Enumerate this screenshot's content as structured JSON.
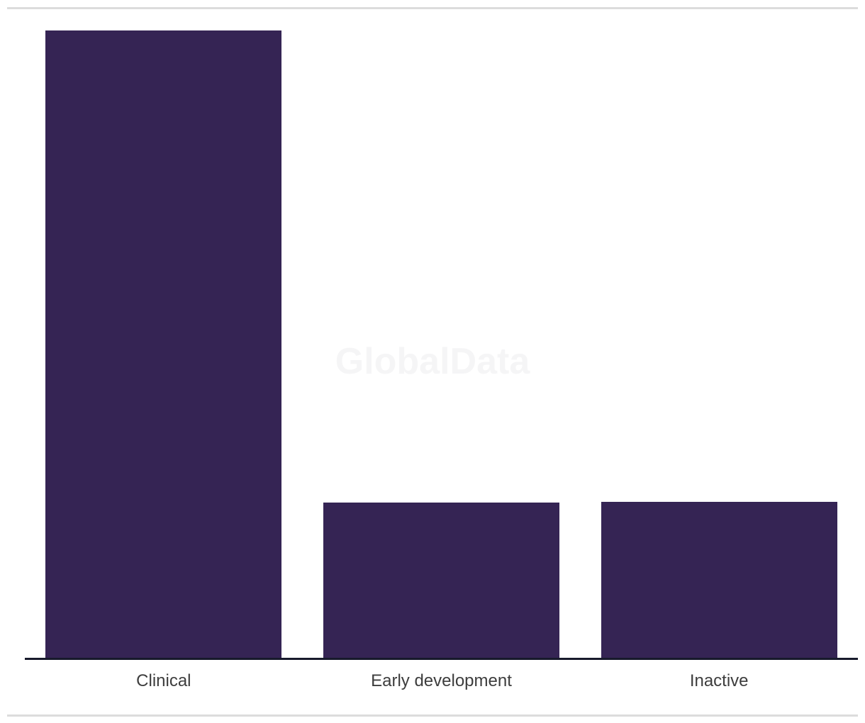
{
  "page": {
    "background": "#ffffff",
    "top_rule_color": "#dcdcdc",
    "bottom_rule_color": "#dcdcdc"
  },
  "watermark": {
    "text": "GlobalData",
    "color": "#f5f5f6"
  },
  "chart_data": {
    "type": "bar",
    "categories": [
      "Clinical",
      "Early development",
      "Inactive"
    ],
    "values": [
      885,
      219,
      220
    ],
    "value_unit": "pixel-height estimate (no numeric axis shown)",
    "relative_values": [
      1.0,
      0.247,
      0.249
    ],
    "title": "",
    "xlabel": "",
    "ylabel": "",
    "ylim": [
      0,
      885
    ],
    "grid": false,
    "legend": false,
    "yaxis_visible": false,
    "bar_color": "#352454",
    "axis_line_color": "#171a2b",
    "label_color": "#3d3d3d"
  }
}
